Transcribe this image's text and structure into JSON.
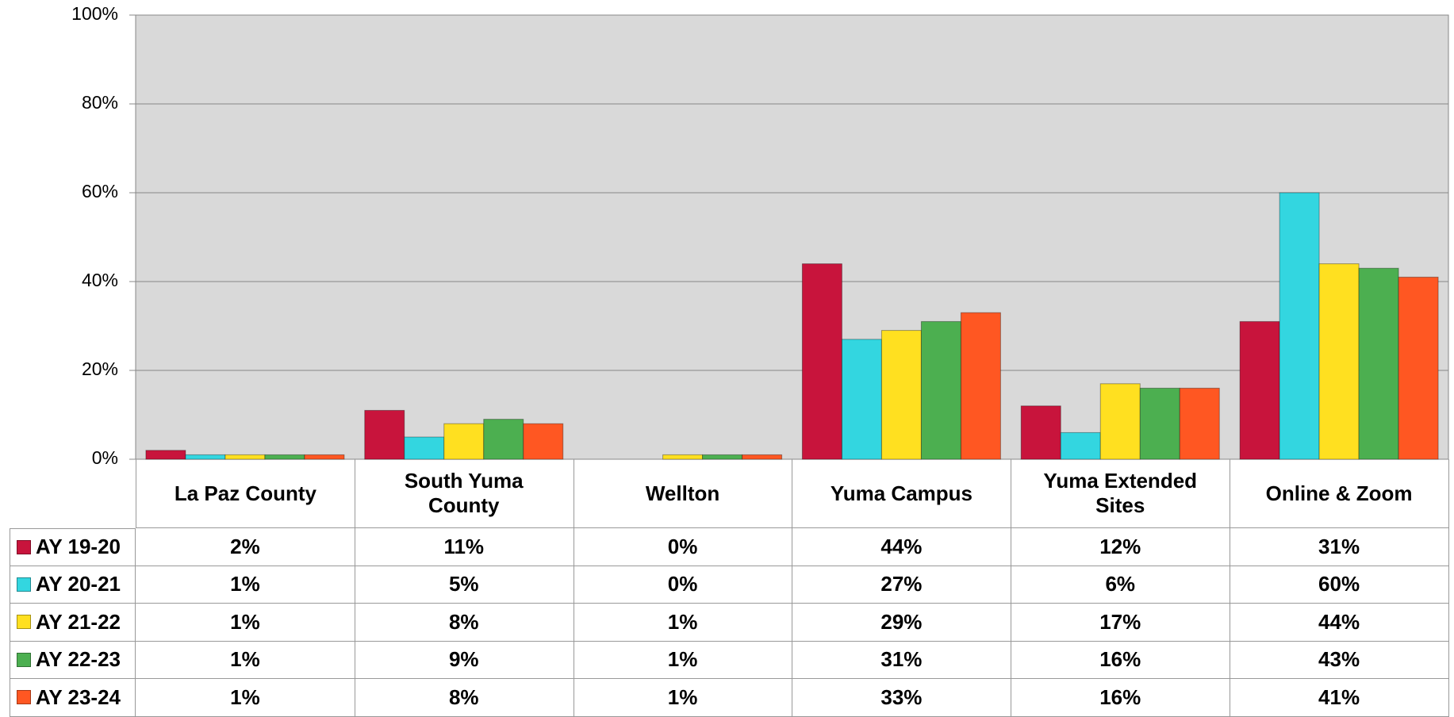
{
  "chart_data": {
    "type": "bar",
    "categories": [
      "La Paz County",
      "South Yuma County",
      "Wellton",
      "Yuma Campus",
      "Yuma Extended Sites",
      "Online & Zoom"
    ],
    "series": [
      {
        "name": "AY 19-20",
        "color": "#c8143c",
        "values": [
          2,
          11,
          0,
          44,
          12,
          31
        ],
        "value_labels": [
          "2%",
          "11%",
          "0%",
          "44%",
          "12%",
          "31%"
        ]
      },
      {
        "name": "AY 20-21",
        "color": "#33d6e0",
        "values": [
          1,
          5,
          0,
          27,
          6,
          60
        ],
        "value_labels": [
          "1%",
          "5%",
          "0%",
          "27%",
          "6%",
          "60%"
        ]
      },
      {
        "name": "AY 21-22",
        "color": "#ffe020",
        "values": [
          1,
          8,
          1,
          29,
          17,
          44
        ],
        "value_labels": [
          "1%",
          "8%",
          "1%",
          "29%",
          "17%",
          "44%"
        ]
      },
      {
        "name": "AY 22-23",
        "color": "#4caf50",
        "values": [
          1,
          9,
          1,
          31,
          16,
          43
        ],
        "value_labels": [
          "1%",
          "9%",
          "1%",
          "31%",
          "16%",
          "43%"
        ]
      },
      {
        "name": "AY 23-24",
        "color": "#ff5722",
        "values": [
          1,
          8,
          1,
          33,
          16,
          41
        ],
        "value_labels": [
          "1%",
          "8%",
          "1%",
          "33%",
          "16%",
          "41%"
        ]
      }
    ],
    "ylim": [
      0,
      100
    ],
    "yticks": [
      {
        "value": 0,
        "label": "0%"
      },
      {
        "value": 20,
        "label": "20%"
      },
      {
        "value": 40,
        "label": "40%"
      },
      {
        "value": 60,
        "label": "60%"
      },
      {
        "value": 80,
        "label": "80%"
      },
      {
        "value": 100,
        "label": "100%"
      }
    ],
    "grid": true
  }
}
